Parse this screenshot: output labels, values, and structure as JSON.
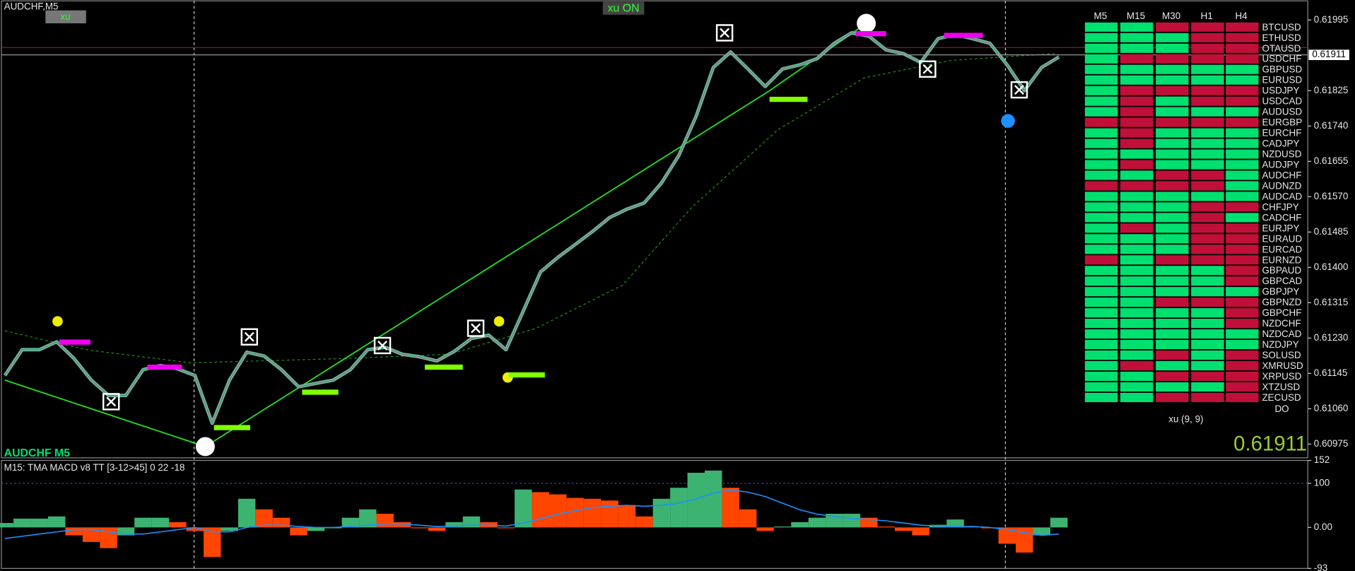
{
  "window": {
    "symbol_timeframe": "AUDCHF,M5",
    "button_xu": "xu",
    "button_xu_on": "xu ON",
    "chart_label": "AUDCHF M5"
  },
  "chart_data": [
    {
      "type": "line",
      "color": "#5fbf9f",
      "values": [
        0.6114,
        0.61202,
        0.61202,
        0.61221,
        0.61181,
        0.61129,
        0.61092,
        0.61092,
        0.61154,
        0.61164,
        0.61156,
        0.6114,
        0.61025,
        0.61129,
        0.61196,
        0.61187,
        0.61154,
        0.61113,
        0.61121,
        0.61129,
        0.61154,
        0.61202,
        0.61208,
        0.61191,
        0.61185,
        0.61175,
        0.61198,
        0.61229,
        0.61237,
        0.61202,
        0.61295,
        0.61389,
        0.61424,
        0.61455,
        0.61486,
        0.6152,
        0.6154,
        0.61555,
        0.61603,
        0.61669,
        0.61763,
        0.61881,
        0.61918,
        0.61877,
        0.61835,
        0.61877,
        0.61887,
        0.61902,
        0.61939,
        0.61964,
        0.61956,
        0.61923,
        0.61914,
        0.61893,
        0.6195,
        0.6196,
        0.6195,
        0.61939,
        0.61887,
        0.61825,
        0.61881,
        0.61906
      ],
      "ylim": [
        0.60942,
        0.62043
      ],
      "yticks": [
        0.61995,
        0.61825,
        {
          "value": 0.6174,
          "label": "0.61740"
        },
        0.61655,
        {
          "value": 0.6157,
          "label": "0.61570"
        },
        0.61485,
        {
          "value": 0.614,
          "label": "0.61400"
        },
        0.61315,
        {
          "value": 0.6123,
          "label": "0.61230"
        },
        0.61145,
        {
          "value": 0.6106,
          "label": "0.61060"
        },
        0.60975
      ],
      "current_price": 0.61911,
      "current_price_color": "#9acd32"
    },
    {
      "type": "bar",
      "title": "M15: TMA MACD v8 TT [3-12>45] 0 22 -18",
      "values": [
        10,
        20,
        20,
        25,
        -18,
        -33,
        -47,
        -18,
        22,
        22,
        12,
        -8,
        -67,
        -8,
        65,
        41,
        22,
        -18,
        -8,
        -2,
        22,
        41,
        31,
        12,
        -2,
        -8,
        12,
        25,
        12,
        -2,
        86,
        80,
        75,
        67,
        65,
        61,
        51,
        25,
        65,
        90,
        124,
        129,
        90,
        41,
        -8,
        2,
        12,
        22,
        31,
        31,
        22,
        2,
        -8,
        -18,
        6,
        18,
        2,
        -2,
        -37,
        -57,
        -18,
        22
      ],
      "up_color": "#3cb371",
      "down_color": "#ff4500",
      "signal": {
        "color": "#1e90ff",
        "values": [
          -25,
          -20,
          -15,
          -10,
          -5,
          -5,
          -10,
          -15,
          -15,
          -10,
          -5,
          0,
          -10,
          -10,
          0,
          5,
          5,
          2,
          0,
          0,
          2,
          5,
          8,
          8,
          5,
          2,
          3,
          5,
          5,
          3,
          10,
          20,
          30,
          38,
          45,
          48,
          50,
          48,
          50,
          55,
          65,
          78,
          85,
          80,
          70,
          55,
          40,
          30,
          25,
          20,
          18,
          15,
          10,
          5,
          3,
          2,
          2,
          0,
          -5,
          -12,
          -18,
          -15
        ]
      },
      "ylim": [
        -93,
        152
      ],
      "yticks": [
        152,
        100,
        {
          "value": 0,
          "label": "0.00"
        },
        -93
      ],
      "level": 100
    }
  ],
  "signal_table": {
    "columns": [
      "M5",
      "M15",
      "M30",
      "H1",
      "H4"
    ],
    "cell_colors": {
      "G": "#00e070",
      "R": "#c0103a"
    },
    "rows": [
      {
        "symbol": "BTCUSD",
        "states": [
          "G",
          "G",
          "R",
          "R",
          "R"
        ]
      },
      {
        "symbol": "ETHUSD",
        "states": [
          "G",
          "G",
          "G",
          "R",
          "R"
        ]
      },
      {
        "symbol": "OTAUSD",
        "states": [
          "G",
          "G",
          "G",
          "R",
          "R"
        ]
      },
      {
        "symbol": "USDCHF",
        "states": [
          "G",
          "R",
          "R",
          "R",
          "R"
        ]
      },
      {
        "symbol": "GBPUSD",
        "states": [
          "G",
          "G",
          "G",
          "G",
          "G"
        ]
      },
      {
        "symbol": "EURUSD",
        "states": [
          "G",
          "G",
          "G",
          "G",
          "G"
        ]
      },
      {
        "symbol": "USDJPY",
        "states": [
          "G",
          "R",
          "R",
          "R",
          "R"
        ]
      },
      {
        "symbol": "USDCAD",
        "states": [
          "G",
          "R",
          "G",
          "R",
          "R"
        ]
      },
      {
        "symbol": "AUDUSD",
        "states": [
          "G",
          "R",
          "G",
          "G",
          "G"
        ]
      },
      {
        "symbol": "EURGBP",
        "states": [
          "R",
          "R",
          "R",
          "R",
          "R"
        ]
      },
      {
        "symbol": "EURCHF",
        "states": [
          "G",
          "R",
          "G",
          "G",
          "G"
        ]
      },
      {
        "symbol": "CADJPY",
        "states": [
          "G",
          "R",
          "G",
          "G",
          "G"
        ]
      },
      {
        "symbol": "NZDUSD",
        "states": [
          "G",
          "G",
          "G",
          "G",
          "G"
        ]
      },
      {
        "symbol": "AUDJPY",
        "states": [
          "G",
          "R",
          "G",
          "G",
          "G"
        ]
      },
      {
        "symbol": "AUDCHF",
        "states": [
          "G",
          "G",
          "R",
          "R",
          "G"
        ]
      },
      {
        "symbol": "AUDNZD",
        "states": [
          "R",
          "R",
          "R",
          "R",
          "G"
        ]
      },
      {
        "symbol": "AUDCAD",
        "states": [
          "G",
          "G",
          "G",
          "G",
          "G"
        ]
      },
      {
        "symbol": "CHFJPY",
        "states": [
          "G",
          "G",
          "G",
          "R",
          "R"
        ]
      },
      {
        "symbol": "CADCHF",
        "states": [
          "G",
          "G",
          "G",
          "R",
          "G"
        ]
      },
      {
        "symbol": "EURJPY",
        "states": [
          "G",
          "R",
          "G",
          "R",
          "R"
        ]
      },
      {
        "symbol": "EURAUD",
        "states": [
          "G",
          "G",
          "G",
          "R",
          "R"
        ]
      },
      {
        "symbol": "EURCAD",
        "states": [
          "G",
          "G",
          "G",
          "R",
          "R"
        ]
      },
      {
        "symbol": "EURNZD",
        "states": [
          "R",
          "G",
          "R",
          "R",
          "R"
        ]
      },
      {
        "symbol": "GBPAUD",
        "states": [
          "G",
          "G",
          "G",
          "G",
          "R"
        ]
      },
      {
        "symbol": "GBPCAD",
        "states": [
          "G",
          "G",
          "G",
          "G",
          "R"
        ]
      },
      {
        "symbol": "GBPJPY",
        "states": [
          "G",
          "G",
          "G",
          "G",
          "G"
        ]
      },
      {
        "symbol": "GBPNZD",
        "states": [
          "G",
          "G",
          "R",
          "R",
          "R"
        ]
      },
      {
        "symbol": "GBPCHF",
        "states": [
          "G",
          "G",
          "G",
          "G",
          "R"
        ]
      },
      {
        "symbol": "NZDCHF",
        "states": [
          "G",
          "G",
          "G",
          "G",
          "R"
        ]
      },
      {
        "symbol": "NZDCAD",
        "states": [
          "G",
          "G",
          "G",
          "G",
          "G"
        ]
      },
      {
        "symbol": "NZDJPY",
        "states": [
          "G",
          "G",
          "G",
          "G",
          "G"
        ]
      },
      {
        "symbol": "SOLUSD",
        "states": [
          "G",
          "G",
          "R",
          "G",
          "R"
        ]
      },
      {
        "symbol": "XMRUSD",
        "states": [
          "G",
          "R",
          "G",
          "G",
          "R"
        ]
      },
      {
        "symbol": "XRPUSD",
        "states": [
          "G",
          "G",
          "R",
          "R",
          "R"
        ]
      },
      {
        "symbol": "XTZUSD",
        "states": [
          "G",
          "G",
          "G",
          "G",
          "R"
        ]
      },
      {
        "symbol": "ZECUSD",
        "states": [
          "G",
          "G",
          "R",
          "R",
          "R"
        ]
      }
    ],
    "footer": "DO"
  },
  "indicator_label": "xu (9, 9)"
}
